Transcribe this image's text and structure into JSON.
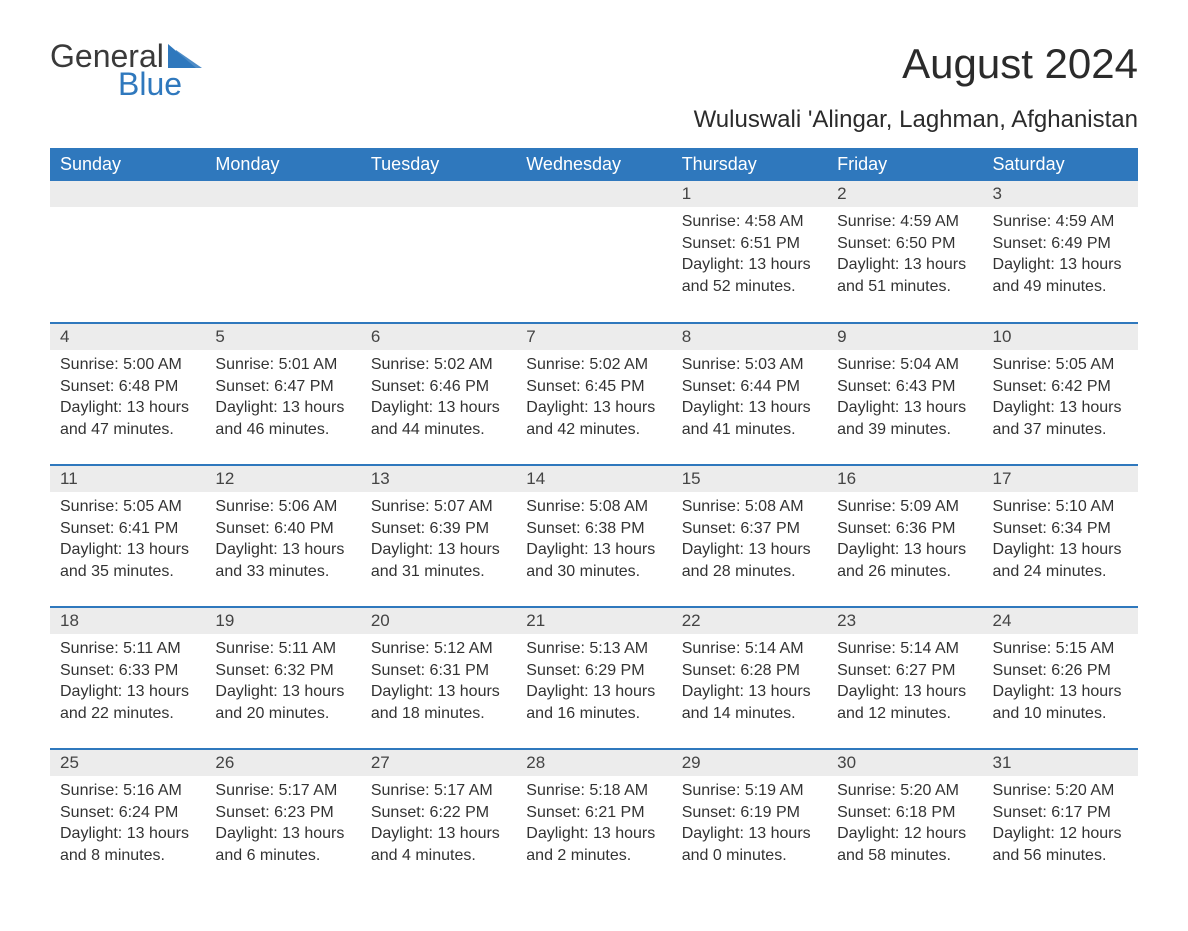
{
  "logo": {
    "word1": "General",
    "word2": "Blue"
  },
  "title": "August 2024",
  "subtitle": "Wuluswali 'Alingar, Laghman, Afghanistan",
  "colors": {
    "header_bg": "#2f78bd",
    "header_fg": "#ffffff",
    "daynum_bg": "#ececec",
    "rule": "#2f78bd",
    "text": "#333333",
    "logo_accent": "#2f78bd"
  },
  "fonts": {
    "title_pt": 42,
    "subtitle_pt": 24,
    "th_pt": 18,
    "daynum_pt": 17,
    "body_pt": 16
  },
  "day_names": [
    "Sunday",
    "Monday",
    "Tuesday",
    "Wednesday",
    "Thursday",
    "Friday",
    "Saturday"
  ],
  "weeks": [
    [
      null,
      null,
      null,
      null,
      {
        "n": "1",
        "sunrise": "Sunrise: 4:58 AM",
        "sunset": "Sunset: 6:51 PM",
        "daylight": "Daylight: 13 hours and 52 minutes."
      },
      {
        "n": "2",
        "sunrise": "Sunrise: 4:59 AM",
        "sunset": "Sunset: 6:50 PM",
        "daylight": "Daylight: 13 hours and 51 minutes."
      },
      {
        "n": "3",
        "sunrise": "Sunrise: 4:59 AM",
        "sunset": "Sunset: 6:49 PM",
        "daylight": "Daylight: 13 hours and 49 minutes."
      }
    ],
    [
      {
        "n": "4",
        "sunrise": "Sunrise: 5:00 AM",
        "sunset": "Sunset: 6:48 PM",
        "daylight": "Daylight: 13 hours and 47 minutes."
      },
      {
        "n": "5",
        "sunrise": "Sunrise: 5:01 AM",
        "sunset": "Sunset: 6:47 PM",
        "daylight": "Daylight: 13 hours and 46 minutes."
      },
      {
        "n": "6",
        "sunrise": "Sunrise: 5:02 AM",
        "sunset": "Sunset: 6:46 PM",
        "daylight": "Daylight: 13 hours and 44 minutes."
      },
      {
        "n": "7",
        "sunrise": "Sunrise: 5:02 AM",
        "sunset": "Sunset: 6:45 PM",
        "daylight": "Daylight: 13 hours and 42 minutes."
      },
      {
        "n": "8",
        "sunrise": "Sunrise: 5:03 AM",
        "sunset": "Sunset: 6:44 PM",
        "daylight": "Daylight: 13 hours and 41 minutes."
      },
      {
        "n": "9",
        "sunrise": "Sunrise: 5:04 AM",
        "sunset": "Sunset: 6:43 PM",
        "daylight": "Daylight: 13 hours and 39 minutes."
      },
      {
        "n": "10",
        "sunrise": "Sunrise: 5:05 AM",
        "sunset": "Sunset: 6:42 PM",
        "daylight": "Daylight: 13 hours and 37 minutes."
      }
    ],
    [
      {
        "n": "11",
        "sunrise": "Sunrise: 5:05 AM",
        "sunset": "Sunset: 6:41 PM",
        "daylight": "Daylight: 13 hours and 35 minutes."
      },
      {
        "n": "12",
        "sunrise": "Sunrise: 5:06 AM",
        "sunset": "Sunset: 6:40 PM",
        "daylight": "Daylight: 13 hours and 33 minutes."
      },
      {
        "n": "13",
        "sunrise": "Sunrise: 5:07 AM",
        "sunset": "Sunset: 6:39 PM",
        "daylight": "Daylight: 13 hours and 31 minutes."
      },
      {
        "n": "14",
        "sunrise": "Sunrise: 5:08 AM",
        "sunset": "Sunset: 6:38 PM",
        "daylight": "Daylight: 13 hours and 30 minutes."
      },
      {
        "n": "15",
        "sunrise": "Sunrise: 5:08 AM",
        "sunset": "Sunset: 6:37 PM",
        "daylight": "Daylight: 13 hours and 28 minutes."
      },
      {
        "n": "16",
        "sunrise": "Sunrise: 5:09 AM",
        "sunset": "Sunset: 6:36 PM",
        "daylight": "Daylight: 13 hours and 26 minutes."
      },
      {
        "n": "17",
        "sunrise": "Sunrise: 5:10 AM",
        "sunset": "Sunset: 6:34 PM",
        "daylight": "Daylight: 13 hours and 24 minutes."
      }
    ],
    [
      {
        "n": "18",
        "sunrise": "Sunrise: 5:11 AM",
        "sunset": "Sunset: 6:33 PM",
        "daylight": "Daylight: 13 hours and 22 minutes."
      },
      {
        "n": "19",
        "sunrise": "Sunrise: 5:11 AM",
        "sunset": "Sunset: 6:32 PM",
        "daylight": "Daylight: 13 hours and 20 minutes."
      },
      {
        "n": "20",
        "sunrise": "Sunrise: 5:12 AM",
        "sunset": "Sunset: 6:31 PM",
        "daylight": "Daylight: 13 hours and 18 minutes."
      },
      {
        "n": "21",
        "sunrise": "Sunrise: 5:13 AM",
        "sunset": "Sunset: 6:29 PM",
        "daylight": "Daylight: 13 hours and 16 minutes."
      },
      {
        "n": "22",
        "sunrise": "Sunrise: 5:14 AM",
        "sunset": "Sunset: 6:28 PM",
        "daylight": "Daylight: 13 hours and 14 minutes."
      },
      {
        "n": "23",
        "sunrise": "Sunrise: 5:14 AM",
        "sunset": "Sunset: 6:27 PM",
        "daylight": "Daylight: 13 hours and 12 minutes."
      },
      {
        "n": "24",
        "sunrise": "Sunrise: 5:15 AM",
        "sunset": "Sunset: 6:26 PM",
        "daylight": "Daylight: 13 hours and 10 minutes."
      }
    ],
    [
      {
        "n": "25",
        "sunrise": "Sunrise: 5:16 AM",
        "sunset": "Sunset: 6:24 PM",
        "daylight": "Daylight: 13 hours and 8 minutes."
      },
      {
        "n": "26",
        "sunrise": "Sunrise: 5:17 AM",
        "sunset": "Sunset: 6:23 PM",
        "daylight": "Daylight: 13 hours and 6 minutes."
      },
      {
        "n": "27",
        "sunrise": "Sunrise: 5:17 AM",
        "sunset": "Sunset: 6:22 PM",
        "daylight": "Daylight: 13 hours and 4 minutes."
      },
      {
        "n": "28",
        "sunrise": "Sunrise: 5:18 AM",
        "sunset": "Sunset: 6:21 PM",
        "daylight": "Daylight: 13 hours and 2 minutes."
      },
      {
        "n": "29",
        "sunrise": "Sunrise: 5:19 AM",
        "sunset": "Sunset: 6:19 PM",
        "daylight": "Daylight: 13 hours and 0 minutes."
      },
      {
        "n": "30",
        "sunrise": "Sunrise: 5:20 AM",
        "sunset": "Sunset: 6:18 PM",
        "daylight": "Daylight: 12 hours and 58 minutes."
      },
      {
        "n": "31",
        "sunrise": "Sunrise: 5:20 AM",
        "sunset": "Sunset: 6:17 PM",
        "daylight": "Daylight: 12 hours and 56 minutes."
      }
    ]
  ]
}
